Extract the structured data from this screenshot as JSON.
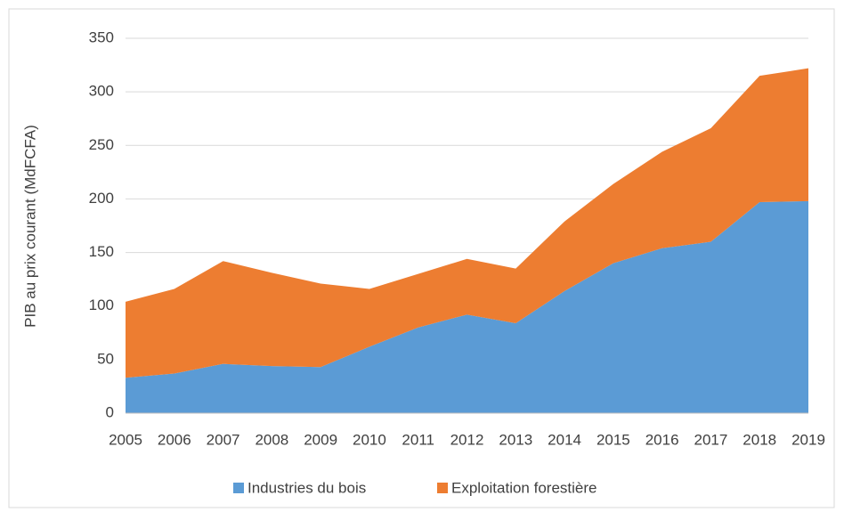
{
  "chart_data": {
    "type": "stacked_area",
    "y_label": "PIB au prix courant (MdFCFA)",
    "categories": [
      "2005",
      "2006",
      "2007",
      "2008",
      "2009",
      "2010",
      "2011",
      "2012",
      "2013",
      "2014",
      "2015",
      "2016",
      "2017",
      "2018",
      "2019"
    ],
    "series": [
      {
        "name": "Industries du bois",
        "color": "#5b9bd5",
        "values": [
          33,
          37,
          46,
          44,
          43,
          62,
          80,
          92,
          84,
          114,
          140,
          154,
          160,
          197,
          198
        ]
      },
      {
        "name": "Exploitation forestière",
        "color": "#ed7d31",
        "values": [
          71,
          79,
          96,
          87,
          78,
          54,
          50,
          52,
          51,
          65,
          74,
          90,
          106,
          118,
          124
        ]
      }
    ],
    "ylim": [
      0,
      350
    ],
    "yticks": [
      0,
      50,
      100,
      150,
      200,
      250,
      300,
      350
    ],
    "grid": true,
    "legend": "bottom"
  }
}
